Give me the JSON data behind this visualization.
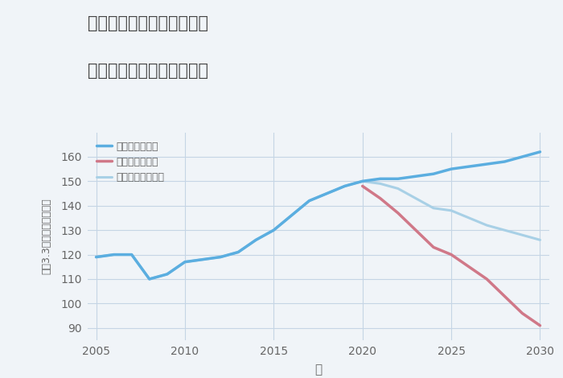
{
  "title_line1": "福岡県春日市春日原東町の",
  "title_line2": "中古マンションの価格推移",
  "xlabel": "年",
  "ylabel": "坪（3.3㎡）単価（万円）",
  "ylim": [
    85,
    170
  ],
  "xlim": [
    2004.5,
    2030.5
  ],
  "yticks": [
    90,
    100,
    110,
    120,
    130,
    140,
    150,
    160
  ],
  "xticks": [
    2005,
    2010,
    2015,
    2020,
    2025,
    2030
  ],
  "background_color": "#f0f4f8",
  "plot_bg_color": "#f0f4f8",
  "grid_color": "#c5d5e5",
  "good_color": "#5baee0",
  "bad_color": "#d07888",
  "normal_color": "#a8d0e6",
  "good_label": "グッドシナリオ",
  "bad_label": "バッドシナリオ",
  "normal_label": "ノーマルシナリオ",
  "good_x": [
    2005,
    2006,
    2007,
    2008,
    2009,
    2010,
    2011,
    2012,
    2013,
    2014,
    2015,
    2016,
    2017,
    2018,
    2019,
    2020,
    2021,
    2022,
    2023,
    2024,
    2025,
    2026,
    2027,
    2028,
    2029,
    2030
  ],
  "good_y": [
    119,
    120,
    120,
    110,
    112,
    117,
    118,
    119,
    121,
    126,
    130,
    136,
    142,
    145,
    148,
    150,
    151,
    151,
    152,
    153,
    155,
    156,
    157,
    158,
    160,
    162
  ],
  "bad_x": [
    2020,
    2021,
    2022,
    2023,
    2024,
    2025,
    2026,
    2027,
    2028,
    2029,
    2030
  ],
  "bad_y": [
    148,
    143,
    137,
    130,
    123,
    120,
    115,
    110,
    103,
    96,
    91
  ],
  "normal_x": [
    2005,
    2006,
    2007,
    2008,
    2009,
    2010,
    2011,
    2012,
    2013,
    2014,
    2015,
    2016,
    2017,
    2018,
    2019,
    2020,
    2021,
    2022,
    2023,
    2024,
    2025,
    2026,
    2027,
    2028,
    2029,
    2030
  ],
  "normal_y": [
    119,
    120,
    120,
    110,
    112,
    117,
    118,
    119,
    121,
    126,
    130,
    136,
    142,
    145,
    148,
    150,
    149,
    147,
    143,
    139,
    138,
    135,
    132,
    130,
    128,
    126
  ],
  "title_color": "#444444",
  "tick_color": "#666666",
  "label_color": "#666666"
}
